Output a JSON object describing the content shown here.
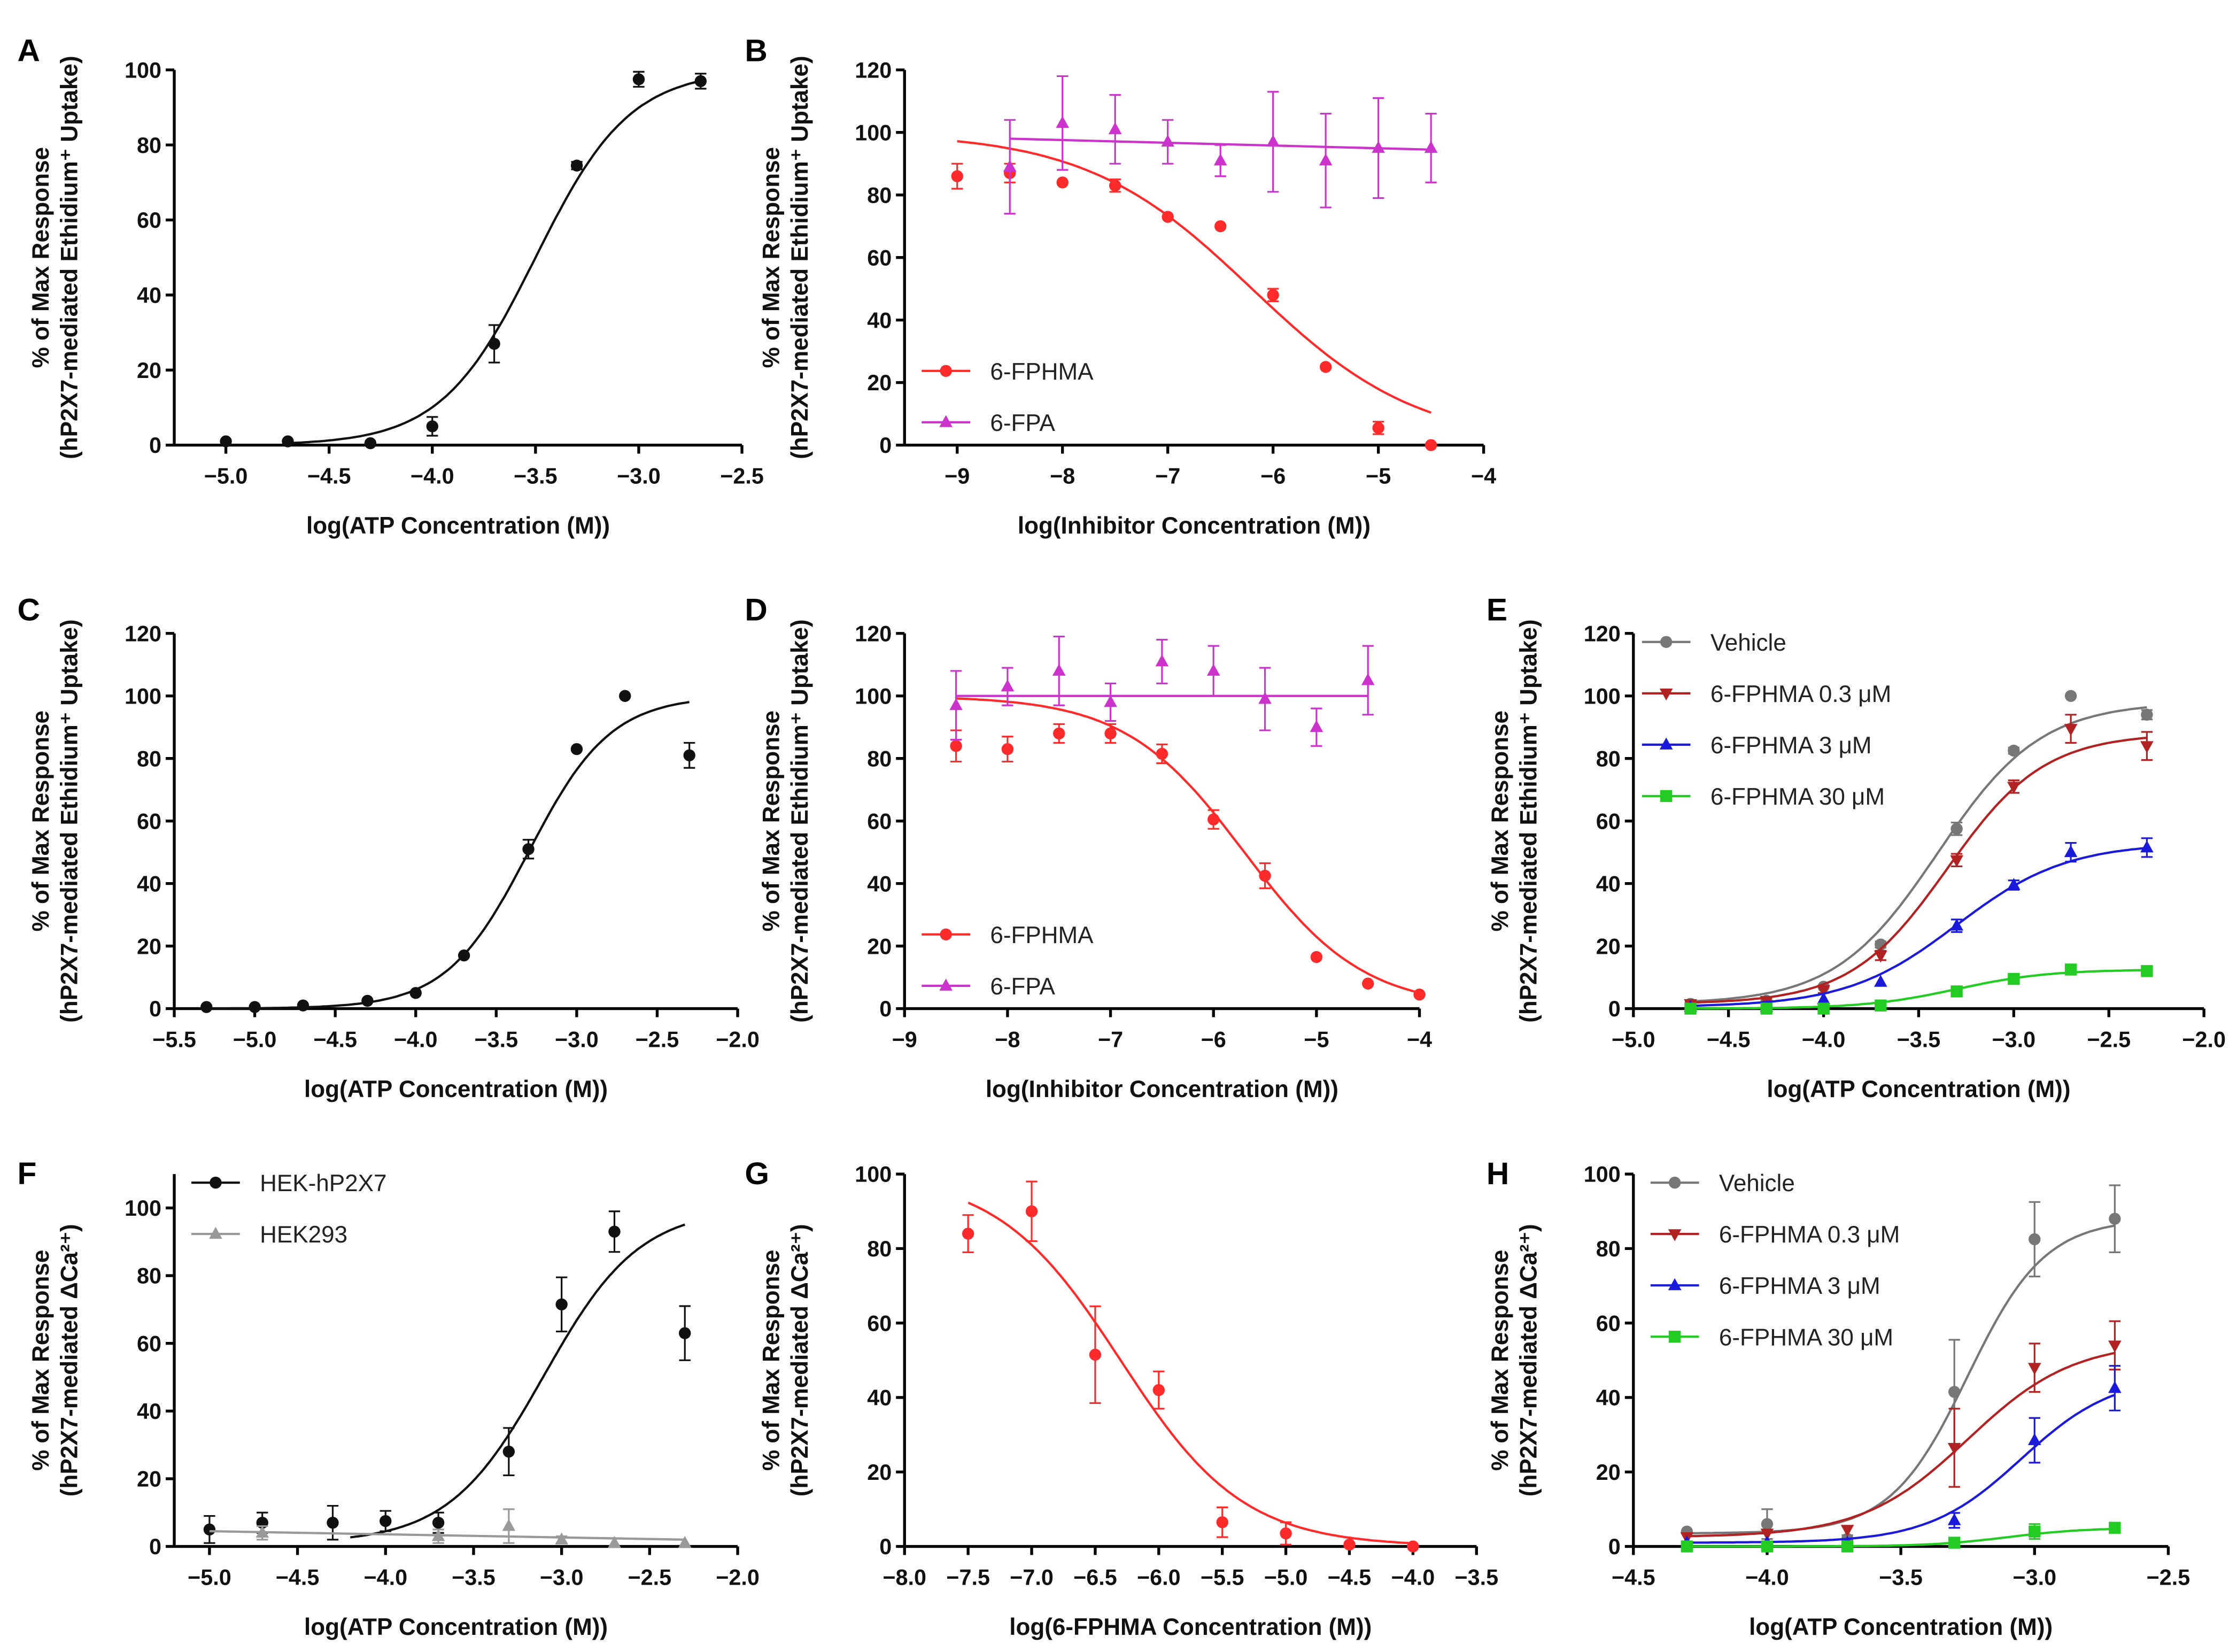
{
  "chart_data": [
    {
      "panel": "A",
      "type": "line",
      "xlabel": "log(ATP Concentration (M))",
      "ylabel": [
        "% of Max Response",
        "(hP2X7-mediated Ethidium⁺ Uptake)"
      ],
      "xlim": [
        -5.25,
        -2.5
      ],
      "ylim": [
        0,
        100
      ],
      "xticks": [
        -5,
        -4.5,
        -4,
        -3.5,
        -3,
        -2.5
      ],
      "xtick_labels": [
        "−5.0",
        "−4.5",
        "−4.0",
        "−3.5",
        "−3.0",
        "−2.5"
      ],
      "yticks": [
        0,
        20,
        40,
        60,
        80,
        100
      ],
      "legend": null,
      "series": [
        {
          "name": "",
          "color": "#111111",
          "marker": "circle",
          "x": [
            -5,
            -4.7,
            -4.3,
            -4,
            -3.7,
            -3.3,
            -3,
            -2.7
          ],
          "y": [
            1,
            1,
            0.5,
            5,
            27,
            74.5,
            97.5,
            97
          ],
          "err": [
            0,
            0,
            0,
            2.5,
            5,
            1,
            2,
            2
          ],
          "fit": {
            "type": "hill",
            "bottom": 0,
            "top": 100,
            "logEC50": -3.5,
            "hill": 1.9,
            "range": [
              -4.7,
              -2.7
            ]
          }
        }
      ]
    },
    {
      "panel": "B",
      "type": "line",
      "xlabel": "log(Inhibitor Concentration (M))",
      "ylabel": [
        "% of Max Response",
        "(hP2X7-mediated Ethidium⁺ Uptake)"
      ],
      "xlim": [
        -9.5,
        -4
      ],
      "ylim": [
        0,
        120
      ],
      "xticks": [
        -9,
        -8,
        -7,
        -6,
        -5,
        -4
      ],
      "xtick_labels": [
        "−9",
        "−8",
        "−7",
        "−6",
        "−5",
        "−4"
      ],
      "yticks": [
        0,
        20,
        40,
        60,
        80,
        100,
        120
      ],
      "legend": "bottom-left",
      "series": [
        {
          "name": "6-FPHMA",
          "color": "#ff2a2a",
          "marker": "circle",
          "x": [
            -9,
            -8.5,
            -8,
            -7.5,
            -7,
            -6.5,
            -6,
            -5.5,
            -5,
            -4.5
          ],
          "y": [
            86,
            87,
            84,
            83,
            73,
            70,
            48,
            25,
            5.5,
            0
          ],
          "err": [
            4,
            3,
            0,
            2,
            0,
            0,
            2,
            0,
            2,
            0
          ],
          "fit": {
            "type": "hill",
            "bottom": 0,
            "top": 100,
            "logEC50": -6.2,
            "hill": -0.55,
            "range": [
              -9,
              -4.5
            ]
          }
        },
        {
          "name": "6-FPA",
          "color": "#cc33cc",
          "marker": "triangle-up",
          "x": [
            -8.5,
            -8,
            -7.5,
            -7,
            -6.5,
            -6,
            -5.5,
            -5,
            -4.5
          ],
          "y": [
            89,
            103,
            101,
            97,
            91,
            97,
            91,
            95,
            95
          ],
          "err": [
            15,
            15,
            11,
            7,
            5,
            16,
            15,
            16,
            11
          ],
          "fit": {
            "type": "line",
            "points": [
              [
                -8.5,
                98
              ],
              [
                -4.5,
                94.5
              ]
            ]
          }
        }
      ]
    },
    {
      "panel": "C",
      "type": "line",
      "xlabel": "log(ATP Concentration (M))",
      "ylabel": [
        "% of Max Response",
        "(hP2X7-mediated Ethidium⁺ Uptake)"
      ],
      "xlim": [
        -5.5,
        -2
      ],
      "ylim": [
        0,
        120
      ],
      "xticks": [
        -5.5,
        -5,
        -4.5,
        -4,
        -3.5,
        -3,
        -2.5,
        -2
      ],
      "xtick_labels": [
        "−5.5",
        "−5.0",
        "−4.5",
        "−4.0",
        "−3.5",
        "−3.0",
        "−2.5",
        "−2.0"
      ],
      "yticks": [
        0,
        20,
        40,
        60,
        80,
        100,
        120
      ],
      "legend": null,
      "series": [
        {
          "name": "",
          "color": "#111111",
          "marker": "circle",
          "x": [
            -5.3,
            -5,
            -4.7,
            -4.3,
            -4,
            -3.7,
            -3.3,
            -3,
            -2.7,
            -2.3
          ],
          "y": [
            0.5,
            0.5,
            1,
            2.5,
            5,
            17,
            51,
            83,
            100,
            81
          ],
          "err": [
            0,
            0,
            0,
            0,
            0,
            0,
            3,
            0,
            0,
            4
          ],
          "fit": {
            "type": "hill",
            "bottom": 0,
            "top": 100,
            "logEC50": -3.3,
            "hill": 1.7,
            "range": [
              -5.3,
              -2.3
            ]
          }
        }
      ]
    },
    {
      "panel": "D",
      "type": "line",
      "xlabel": "log(Inhibitor Concentration (M))",
      "ylabel": [
        "% of Max Response",
        "(hP2X7-mediated Ethidium⁺ Uptake)"
      ],
      "xlim": [
        -9,
        -4
      ],
      "ylim": [
        0,
        120
      ],
      "xticks": [
        -9,
        -8,
        -7,
        -6,
        -5,
        -4
      ],
      "xtick_labels": [
        "−9",
        "−8",
        "−7",
        "−6",
        "−5",
        "−4"
      ],
      "yticks": [
        0,
        20,
        40,
        60,
        80,
        100,
        120
      ],
      "legend": "bottom-left",
      "series": [
        {
          "name": "6-FPHMA",
          "color": "#ff2a2a",
          "marker": "circle",
          "x": [
            -8.5,
            -8,
            -7.5,
            -7,
            -6.5,
            -6,
            -5.5,
            -5,
            -4.5,
            -4
          ],
          "y": [
            84,
            83,
            88,
            88,
            81.5,
            60.5,
            42.5,
            16.5,
            8,
            4.5
          ],
          "err": [
            5,
            4,
            3,
            3,
            3,
            3,
            4,
            0,
            0,
            0
          ],
          "fit": {
            "type": "hill",
            "bottom": 0,
            "top": 100,
            "logEC50": -5.7,
            "hill": -0.75,
            "range": [
              -8.5,
              -4
            ]
          }
        },
        {
          "name": "6-FPA",
          "color": "#cc33cc",
          "marker": "triangle-up",
          "x": [
            -8.5,
            -8,
            -7.5,
            -7,
            -6.5,
            -6,
            -5.5,
            -5,
            -4.5
          ],
          "y": [
            97,
            103,
            108,
            98,
            111,
            108,
            99,
            90,
            105
          ],
          "err": [
            11,
            6,
            11,
            6,
            7,
            8,
            10,
            6,
            11
          ],
          "fit": {
            "type": "line",
            "points": [
              [
                -8.5,
                100
              ],
              [
                -4.5,
                100
              ]
            ]
          }
        }
      ]
    },
    {
      "panel": "E",
      "type": "line",
      "xlabel": "log(ATP Concentration (M))",
      "ylabel": [
        "% of Max Response",
        "(hP2X7-mediated Ethidium⁺ Uptake)"
      ],
      "xlim": [
        -5,
        -2
      ],
      "ylim": [
        0,
        120
      ],
      "xticks": [
        -5,
        -4.5,
        -4,
        -3.5,
        -3,
        -2.5,
        -2
      ],
      "xtick_labels": [
        "−5.0",
        "−4.5",
        "−4.0",
        "−3.5",
        "−3.0",
        "−2.5",
        "−2.0"
      ],
      "yticks": [
        0,
        20,
        40,
        60,
        80,
        100,
        120
      ],
      "legend": "top-left",
      "series": [
        {
          "name": "Vehicle",
          "color": "#777777",
          "marker": "circle",
          "x": [
            -4.7,
            -4.3,
            -4,
            -3.7,
            -3.3,
            -3,
            -2.7,
            -2.3
          ],
          "y": [
            1.5,
            2.5,
            7,
            20.5,
            57.5,
            82.5,
            100,
            94
          ],
          "err": [
            0,
            0,
            0,
            1,
            2,
            1,
            0,
            1.5
          ],
          "fit": {
            "type": "hill",
            "bottom": 1.5,
            "top": 98,
            "logEC50": -3.4,
            "hill": 1.6,
            "range": [
              -4.7,
              -2.3
            ]
          }
        },
        {
          "name": "6-FPHMA 0.3 μM",
          "color": "#b22222",
          "marker": "triangle-down",
          "x": [
            -4.7,
            -4.3,
            -4,
            -3.7,
            -3.3,
            -3,
            -2.7,
            -2.3
          ],
          "y": [
            1.5,
            2.5,
            6,
            17,
            47.5,
            71,
            89.5,
            84
          ],
          "err": [
            1,
            1,
            1,
            1.5,
            2,
            2,
            4.5,
            4.5
          ],
          "fit": {
            "type": "hill",
            "bottom": 1.5,
            "top": 88,
            "logEC50": -3.35,
            "hill": 1.7,
            "range": [
              -4.7,
              -2.3
            ]
          }
        },
        {
          "name": "6-FPHMA 3 μM",
          "color": "#1a1adb",
          "marker": "triangle-up",
          "x": [
            -4.7,
            -4.3,
            -4,
            -3.7,
            -3.3,
            -3,
            -2.7,
            -2.3
          ],
          "y": [
            0.5,
            0.5,
            3,
            8.5,
            26.5,
            39.5,
            50,
            51.5
          ],
          "err": [
            0,
            0,
            0,
            0,
            2,
            1.5,
            3,
            3
          ],
          "fit": {
            "type": "hill",
            "bottom": 0.5,
            "top": 53,
            "logEC50": -3.3,
            "hill": 1.5,
            "range": [
              -4.7,
              -2.3
            ]
          }
        },
        {
          "name": "6-FPHMA 30 μM",
          "color": "#22cc22",
          "marker": "square",
          "x": [
            -4.7,
            -4.3,
            -4,
            -3.7,
            -3.3,
            -3,
            -2.7,
            -2.3
          ],
          "y": [
            0,
            0,
            0,
            1,
            5.5,
            9.5,
            12.5,
            12
          ],
          "err": [
            0,
            0,
            0,
            0,
            0,
            0,
            0,
            0
          ],
          "fit": {
            "type": "hill",
            "bottom": 0,
            "top": 12.5,
            "logEC50": -3.3,
            "hill": 1.8,
            "range": [
              -4.7,
              -2.3
            ]
          }
        }
      ]
    },
    {
      "panel": "F",
      "type": "line",
      "xlabel": "log(ATP Concentration (M))",
      "ylabel": [
        "% of Max Response",
        "(hP2X7-mediated ΔCa²⁺)"
      ],
      "xlim": [
        -5.2,
        -2
      ],
      "ylim": [
        0,
        110
      ],
      "xticks": [
        -5,
        -4.5,
        -4,
        -3.5,
        -3,
        -2.5,
        -2
      ],
      "xtick_labels": [
        "−5.0",
        "−4.5",
        "−4.0",
        "−3.5",
        "−3.0",
        "−2.5",
        "−2.0"
      ],
      "yticks": [
        0,
        20,
        40,
        60,
        80,
        100
      ],
      "legend": "top-left",
      "series": [
        {
          "name": "HEK-hP2X7",
          "color": "#111111",
          "marker": "circle",
          "x": [
            -5,
            -4.7,
            -4.3,
            -4,
            -3.7,
            -3.3,
            -3,
            -2.7,
            -2.3
          ],
          "y": [
            5,
            7,
            7,
            7.5,
            7,
            28,
            71.5,
            93,
            63
          ],
          "err": [
            4,
            3,
            5,
            3,
            3,
            7,
            8,
            6,
            8
          ],
          "fit": {
            "type": "hill",
            "bottom": 1,
            "top": 100,
            "logEC50": -3.1,
            "hill": 1.6,
            "range": [
              -4.2,
              -2.3
            ]
          }
        },
        {
          "name": "HEK293",
          "color": "#999999",
          "marker": "triangle-up",
          "x": [
            -4.7,
            -3.7,
            -3.3,
            -3,
            -2.7,
            -2.3
          ],
          "y": [
            4,
            3,
            6,
            2,
            1,
            1
          ],
          "err": [
            2,
            2,
            5,
            1,
            0,
            0
          ],
          "fit": {
            "type": "line",
            "points": [
              [
                -5,
                4.5
              ],
              [
                -2.3,
                2
              ]
            ]
          }
        }
      ]
    },
    {
      "panel": "G",
      "type": "line",
      "xlabel": "log(6-FPHMA Concentration (M))",
      "ylabel": [
        "% of Max Response",
        "(hP2X7-mediated ΔCa²⁺)"
      ],
      "xlim": [
        -8,
        -3.5
      ],
      "ylim": [
        0,
        100
      ],
      "xticks": [
        -8,
        -7.5,
        -7,
        -6.5,
        -6,
        -5.5,
        -5,
        -4.5,
        -4,
        -3.5
      ],
      "xtick_labels": [
        "−8.0",
        "−7.5",
        "−7.0",
        "−6.5",
        "−6.0",
        "−5.5",
        "−5.0",
        "−4.5",
        "−4.0",
        "−3.5"
      ],
      "yticks": [
        0,
        20,
        40,
        60,
        80,
        100
      ],
      "legend": null,
      "series": [
        {
          "name": "",
          "color": "#ff2a2a",
          "marker": "circle",
          "x": [
            -7.5,
            -7,
            -6.5,
            -6,
            -5.5,
            -5,
            -4.5,
            -4
          ],
          "y": [
            84,
            90,
            51.5,
            42,
            6.5,
            3.5,
            0.5,
            0
          ],
          "err": [
            5,
            8,
            13,
            5,
            4,
            3,
            0,
            0
          ],
          "fit": {
            "type": "hill",
            "bottom": 0,
            "top": 100,
            "logEC50": -6.3,
            "hill": -0.9,
            "range": [
              -7.5,
              -4
            ]
          }
        }
      ]
    },
    {
      "panel": "H",
      "type": "line",
      "xlabel": "log(ATP Concentration (M))",
      "ylabel": [
        "% of Max Response",
        "(hP2X7-mediated ΔCa²⁺)"
      ],
      "xlim": [
        -4.5,
        -2.5
      ],
      "ylim": [
        0,
        100
      ],
      "xticks": [
        -4.5,
        -4,
        -3.5,
        -3,
        -2.5
      ],
      "xtick_labels": [
        "−4.5",
        "−4.0",
        "−3.5",
        "−3.0",
        "−2.5"
      ],
      "yticks": [
        0,
        20,
        40,
        60,
        80,
        100
      ],
      "legend": "top-left",
      "series": [
        {
          "name": "Vehicle",
          "color": "#777777",
          "marker": "circle",
          "x": [
            -4.3,
            -4,
            -3.7,
            -3.3,
            -3,
            -2.7
          ],
          "y": [
            4,
            6,
            2,
            41.5,
            82.5,
            88
          ],
          "err": [
            0,
            4,
            1,
            14,
            10,
            9
          ],
          "fit": {
            "type": "hill",
            "bottom": 3.5,
            "top": 88,
            "logEC50": -3.25,
            "hill": 3,
            "range": [
              -4.3,
              -2.7
            ]
          }
        },
        {
          "name": "6-FPHMA 0.3 μM",
          "color": "#b22222",
          "marker": "triangle-down",
          "x": [
            -4.3,
            -4,
            -3.7,
            -3.3,
            -3,
            -2.7
          ],
          "y": [
            2.5,
            3.5,
            4.5,
            26.5,
            48,
            54
          ],
          "err": [
            0,
            0,
            0,
            10.5,
            6.5,
            6.5
          ],
          "fit": {
            "type": "hill",
            "bottom": 2.5,
            "top": 55,
            "logEC50": -3.25,
            "hill": 2.2,
            "range": [
              -4.3,
              -2.7
            ]
          }
        },
        {
          "name": "6-FPHMA 3 μM",
          "color": "#1a1adb",
          "marker": "triangle-up",
          "x": [
            -4.3,
            -4,
            -3.7,
            -3.3,
            -3,
            -2.7
          ],
          "y": [
            1,
            1,
            1,
            7,
            28.5,
            42.5
          ],
          "err": [
            0,
            0,
            0,
            2,
            6,
            6
          ],
          "fit": {
            "type": "hill",
            "bottom": 1,
            "top": 46,
            "logEC50": -3.05,
            "hill": 2.5,
            "range": [
              -4.3,
              -2.7
            ]
          }
        },
        {
          "name": "6-FPHMA 30 μM",
          "color": "#22cc22",
          "marker": "square",
          "x": [
            -4.3,
            -4,
            -3.7,
            -3.3,
            -3,
            -2.7
          ],
          "y": [
            0,
            0,
            0,
            1,
            4,
            5
          ],
          "err": [
            0,
            0,
            0,
            0,
            2,
            0
          ],
          "fit": {
            "type": "hill",
            "bottom": 0,
            "top": 5,
            "logEC50": -3.1,
            "hill": 3,
            "range": [
              -4.3,
              -2.7
            ]
          }
        }
      ]
    }
  ]
}
